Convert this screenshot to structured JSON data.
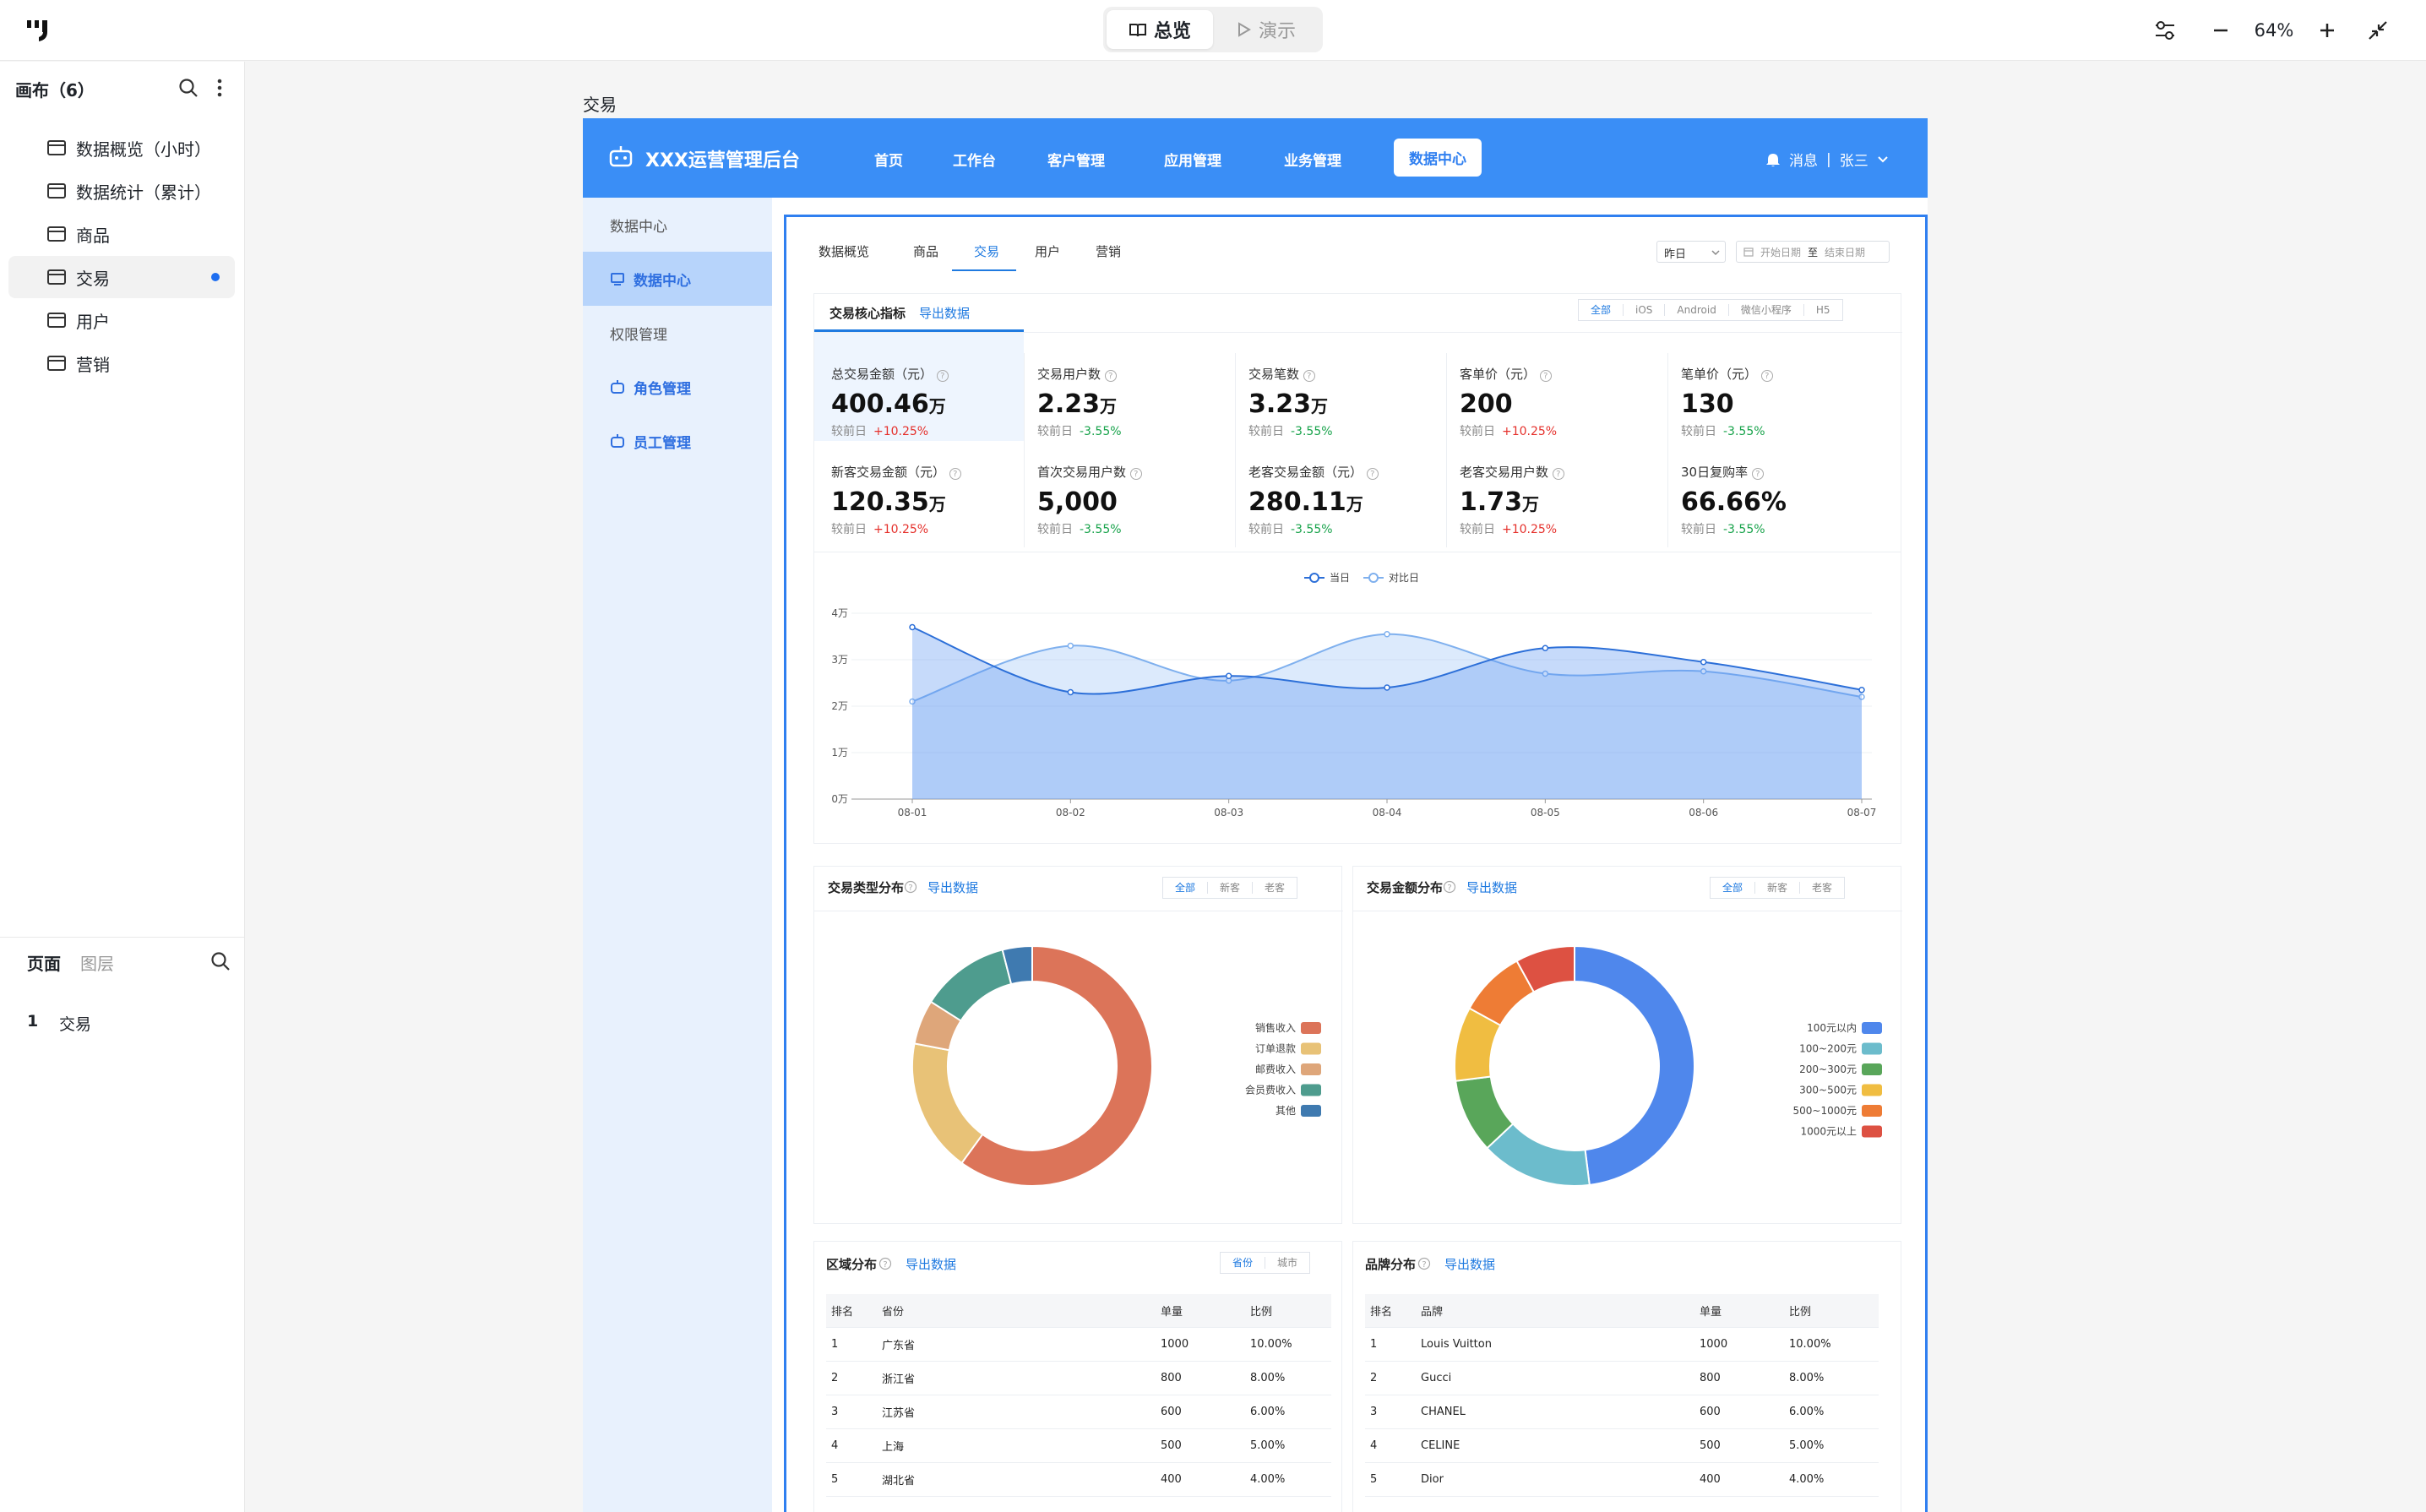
{
  "app": {
    "mode_tabs": [
      {
        "label": "总览",
        "active": true
      },
      {
        "label": "演示",
        "active": false
      }
    ],
    "zoom": "64%"
  },
  "left_panel": {
    "title": "画布（6）",
    "canvases": [
      {
        "label": "数据概览（小时）"
      },
      {
        "label": "数据统计（累计）"
      },
      {
        "label": "商品"
      },
      {
        "label": "交易",
        "selected": true
      },
      {
        "label": "用户"
      },
      {
        "label": "营销"
      }
    ],
    "bottom_tabs": [
      "页面",
      "图层"
    ],
    "pages": [
      {
        "index": "1",
        "label": "交易"
      }
    ]
  },
  "frame": {
    "label": "交易",
    "header": {
      "brand": "XXX运营管理后台",
      "nav": [
        "首页",
        "工作台",
        "客户管理",
        "应用管理",
        "业务管理",
        "数据中心"
      ],
      "active_nav": "数据中心",
      "messages": "消息",
      "separator": "|",
      "user": "张三"
    },
    "sidebar": [
      "数据中心",
      "数据中心",
      "权限管理",
      "角色管理",
      "员工管理"
    ],
    "tabs": [
      "数据概览",
      "商品",
      "交易",
      "用户",
      "营销"
    ],
    "active_tab": "交易",
    "date_select": "昨日",
    "date_start": "开始日期",
    "date_to": "至",
    "date_end": "结束日期",
    "core": {
      "title": "交易核心指标",
      "export": "导出数据",
      "filters": [
        "全部",
        "iOS",
        "Android",
        "微信小程序",
        "H5"
      ],
      "kpis": [
        {
          "label": "总交易金额（元）",
          "value": "400.46",
          "unit": "万",
          "compare": "较前日",
          "delta": "+10.25%",
          "trend": "up"
        },
        {
          "label": "交易用户数",
          "value": "2.23",
          "unit": "万",
          "compare": "较前日",
          "delta": "-3.55%",
          "trend": "down"
        },
        {
          "label": "交易笔数",
          "value": "3.23",
          "unit": "万",
          "compare": "较前日",
          "delta": "-3.55%",
          "trend": "down"
        },
        {
          "label": "客单价（元）",
          "value": "200",
          "unit": "",
          "compare": "较前日",
          "delta": "+10.25%",
          "trend": "up"
        },
        {
          "label": "笔单价（元）",
          "value": "130",
          "unit": "",
          "compare": "较前日",
          "delta": "-3.55%",
          "trend": "down"
        },
        {
          "label": "新客交易金额（元）",
          "value": "120.35",
          "unit": "万",
          "compare": "较前日",
          "delta": "+10.25%",
          "trend": "up"
        },
        {
          "label": "首次交易用户数",
          "value": "5,000",
          "unit": "",
          "compare": "较前日",
          "delta": "-3.55%",
          "trend": "down"
        },
        {
          "label": "老客交易金额（元）",
          "value": "280.11",
          "unit": "万",
          "compare": "较前日",
          "delta": "-3.55%",
          "trend": "down"
        },
        {
          "label": "老客交易用户数",
          "value": "1.73",
          "unit": "万",
          "compare": "较前日",
          "delta": "+10.25%",
          "trend": "up"
        },
        {
          "label": "30日复购率",
          "value": "66.66%",
          "unit": "",
          "compare": "较前日",
          "delta": "-3.55%",
          "trend": "down"
        }
      ]
    },
    "type_dist": {
      "title": "交易类型分布",
      "export": "导出数据",
      "filters": [
        "全部",
        "新客",
        "老客"
      ]
    },
    "amount_dist": {
      "title": "交易金额分布",
      "export": "导出数据",
      "filters": [
        "全部",
        "新客",
        "老客"
      ]
    },
    "region": {
      "title": "区域分布",
      "export": "导出数据",
      "filters": [
        "省份",
        "城市"
      ],
      "columns": [
        "排名",
        "省份",
        "单量",
        "比例"
      ],
      "rows": [
        [
          "1",
          "广东省",
          "1000",
          "10.00%"
        ],
        [
          "2",
          "浙江省",
          "800",
          "8.00%"
        ],
        [
          "3",
          "江苏省",
          "600",
          "6.00%"
        ],
        [
          "4",
          "上海",
          "500",
          "5.00%"
        ],
        [
          "5",
          "湖北省",
          "400",
          "4.00%"
        ]
      ]
    },
    "brand": {
      "title": "品牌分布",
      "export": "导出数据",
      "columns": [
        "排名",
        "品牌",
        "单量",
        "比例"
      ],
      "rows": [
        [
          "1",
          "Louis Vuitton",
          "1000",
          "10.00%"
        ],
        [
          "2",
          "Gucci",
          "800",
          "8.00%"
        ],
        [
          "3",
          "CHANEL",
          "600",
          "6.00%"
        ],
        [
          "4",
          "CELINE",
          "500",
          "5.00%"
        ],
        [
          "5",
          "Dior",
          "400",
          "4.00%"
        ]
      ]
    }
  },
  "chart_data": [
    {
      "type": "area",
      "x": [
        "08-01",
        "08-02",
        "08-03",
        "08-04",
        "08-05",
        "08-06",
        "08-07"
      ],
      "y_ticks": [
        "0万",
        "1万",
        "2万",
        "3万",
        "4万"
      ],
      "ylim": [
        0,
        40000
      ],
      "series": [
        {
          "name": "当日",
          "values": [
            37000,
            23000,
            26500,
            24000,
            32500,
            29500,
            23500
          ],
          "color": "#2c6fd8"
        },
        {
          "name": "对比日",
          "values": [
            21000,
            33000,
            25500,
            35500,
            27000,
            27500,
            22000
          ],
          "color": "#7fb0ee"
        }
      ],
      "legend": "top-center",
      "grid": true
    },
    {
      "type": "pie",
      "slices": [
        {
          "name": "销售收入",
          "value": 60,
          "color": "#dc7459"
        },
        {
          "name": "订单退款",
          "value": 18,
          "color": "#e8c277"
        },
        {
          "name": "邮费收入",
          "value": 6,
          "color": "#dea67a"
        },
        {
          "name": "会员费收入",
          "value": 12,
          "color": "#4e9c8e"
        },
        {
          "name": "其他",
          "value": 4,
          "color": "#3f7ab0"
        }
      ]
    },
    {
      "type": "pie",
      "slices": [
        {
          "name": "100元以内",
          "value": 48,
          "color": "#4f87ec"
        },
        {
          "name": "100~200元",
          "value": 15,
          "color": "#6cbccc"
        },
        {
          "name": "200~300元",
          "value": 10,
          "color": "#59a65a"
        },
        {
          "name": "300~500元",
          "value": 10,
          "color": "#f0bd41"
        },
        {
          "name": "500~1000元",
          "value": 9,
          "color": "#ee7c35"
        },
        {
          "name": "1000元以上",
          "value": 8,
          "color": "#dd5142"
        }
      ]
    }
  ]
}
